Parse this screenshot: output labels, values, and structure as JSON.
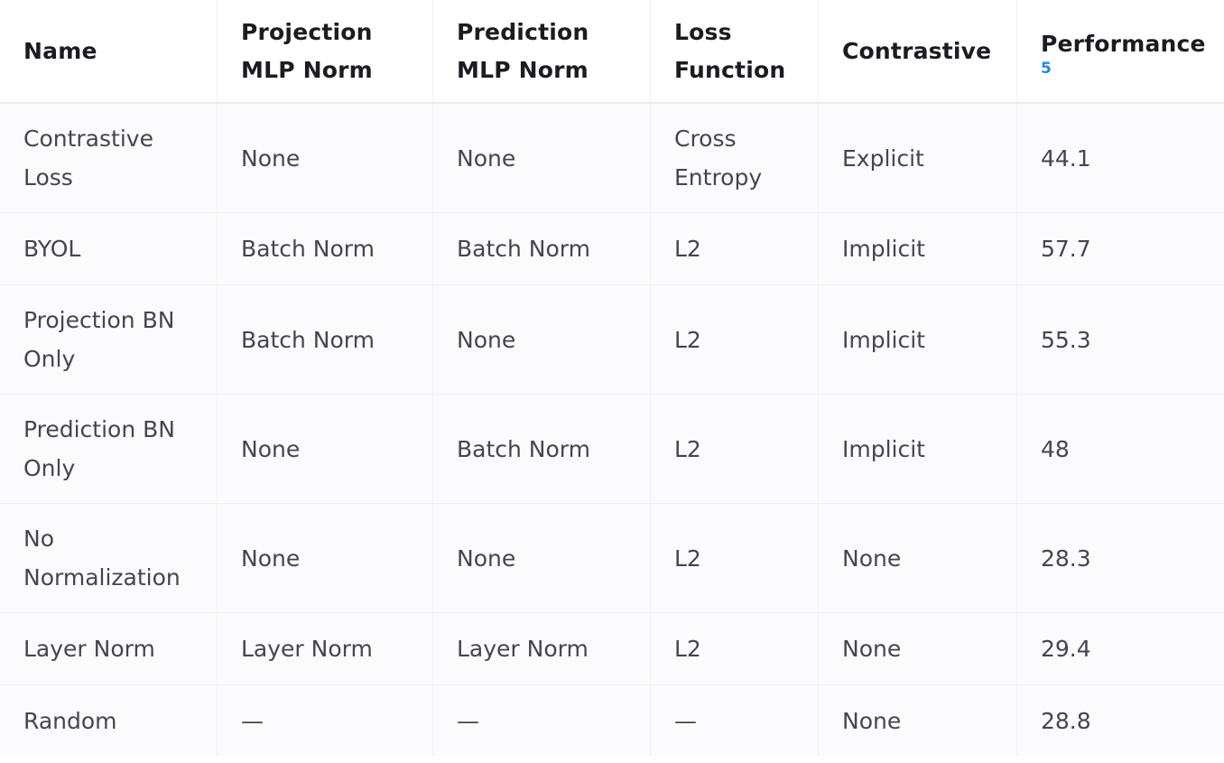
{
  "table": {
    "headers": [
      {
        "label": "Name"
      },
      {
        "label": "Projection MLP Norm"
      },
      {
        "label": "Prediction MLP Norm"
      },
      {
        "label": "Loss Function"
      },
      {
        "label": "Contrastive"
      },
      {
        "label": "Performance",
        "footnote": "5"
      }
    ],
    "rows": [
      {
        "name": "Contrastive Loss",
        "projection": "None",
        "prediction": "None",
        "loss": "Cross Entropy",
        "contrastive": "Explicit",
        "performance": "44.1"
      },
      {
        "name": "BYOL",
        "projection": "Batch Norm",
        "prediction": "Batch Norm",
        "loss": "L2",
        "contrastive": "Implicit",
        "performance": "57.7"
      },
      {
        "name": "Projection BN Only",
        "projection": "Batch Norm",
        "prediction": "None",
        "loss": "L2",
        "contrastive": "Implicit",
        "performance": "55.3"
      },
      {
        "name": "Prediction BN Only",
        "projection": "None",
        "prediction": "Batch Norm",
        "loss": "L2",
        "contrastive": "Implicit",
        "performance": "48"
      },
      {
        "name": "No Normalization",
        "projection": "None",
        "prediction": "None",
        "loss": "L2",
        "contrastive": "None",
        "performance": "28.3"
      },
      {
        "name": "Layer Norm",
        "projection": "Layer Norm",
        "prediction": "Layer Norm",
        "loss": "L2",
        "contrastive": "None",
        "performance": "29.4"
      },
      {
        "name": "Random",
        "projection": "—",
        "prediction": "—",
        "loss": "—",
        "contrastive": "None",
        "performance": "28.8"
      }
    ]
  }
}
